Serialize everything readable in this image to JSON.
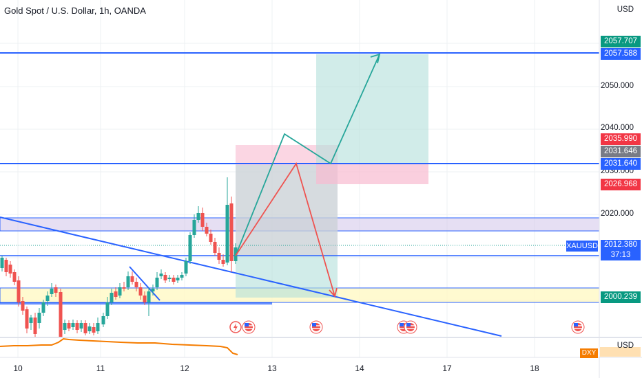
{
  "header": {
    "title": "Gold Spot / U.S. Dollar, 1h, OANDA"
  },
  "price_axis": {
    "currency": "USD",
    "ticks": [
      {
        "label": "2050.000",
        "price": 2050.0
      },
      {
        "label": "2040.000",
        "price": 2040.0
      },
      {
        "label": "2030.000",
        "price": 2030.0
      },
      {
        "label": "2020.000",
        "price": 2020.0
      }
    ],
    "tags": [
      {
        "label": "2057.707",
        "price": 2057.707,
        "color": "#089981"
      },
      {
        "label": "2057.588",
        "price": 2057.588,
        "color": "#2962ff"
      },
      {
        "label": "2035.990",
        "price": 2035.99,
        "color": "#f23645"
      },
      {
        "label": "2031.646",
        "price": 2031.646,
        "color": "#787b86"
      },
      {
        "label": "2031.640",
        "price": 2031.64,
        "color": "#2962ff"
      },
      {
        "label": "2026.968",
        "price": 2026.968,
        "color": "#f23645"
      },
      {
        "label": "2000.239",
        "price": 2000.239,
        "color": "#089981"
      }
    ],
    "last": {
      "symbol": "XAUUSD",
      "price_label": "2012.380",
      "countdown": "37:13",
      "price": 2012.38,
      "color": "#2962ff"
    }
  },
  "sub_pane": {
    "currency": "USD",
    "symbol": "DXY",
    "color": "#f57c00"
  },
  "time_axis": {
    "labels": [
      "10",
      "11",
      "12",
      "13",
      "14",
      "17",
      "18"
    ]
  },
  "events": [
    {
      "icon": "lightning-icon"
    },
    {
      "icon": "us-flag-icon"
    },
    {
      "icon": "us-flag-icon"
    },
    {
      "icon": "us-flag-icon"
    },
    {
      "icon": "us-flag-icon"
    },
    {
      "icon": "us-flag-icon"
    }
  ],
  "colors": {
    "up": "#26a69a",
    "down": "#ef5350",
    "line": "#2962ff",
    "target_zone": "#b2dfdb",
    "stop_zone": "#f8bbd0",
    "resistance_zone": "#d1c4e9",
    "support_zone": "#fff9c4"
  }
}
